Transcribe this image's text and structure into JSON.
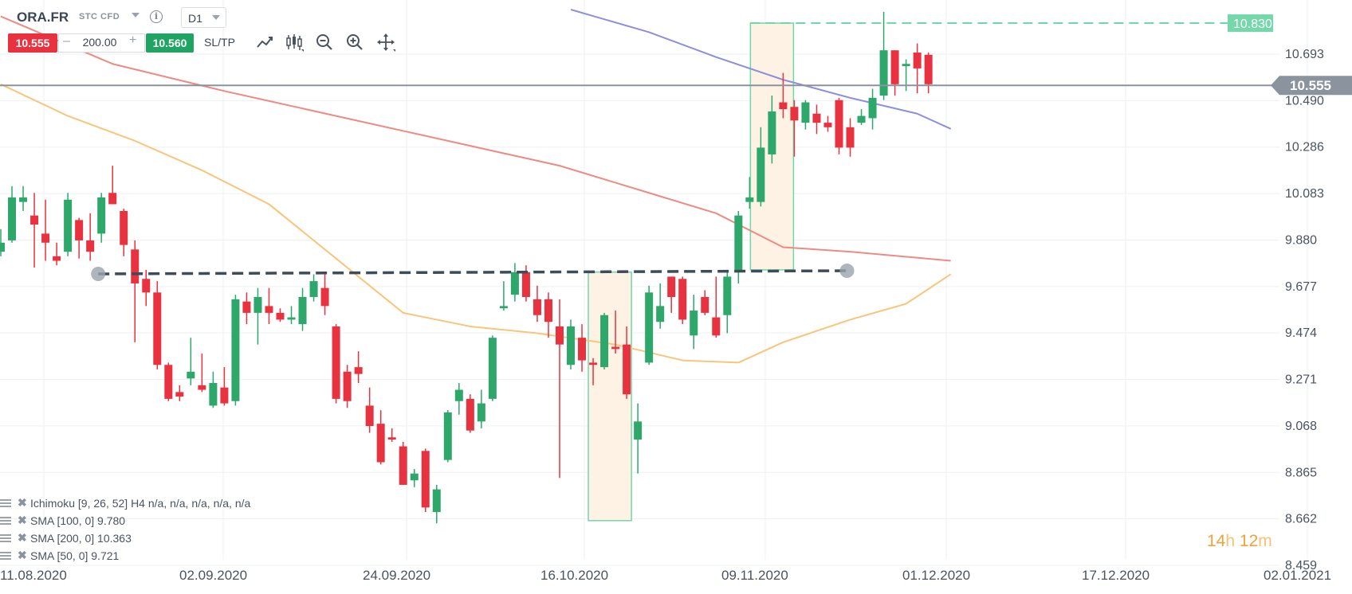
{
  "toolbar": {
    "symbol": "ORA.FR",
    "instrument_type": "STC CFD",
    "timeframe": "D1",
    "sell_price": "10.555",
    "quantity": "200.00",
    "buy_price": "10.560",
    "sl_tp_label": "SL/TP",
    "minus": "–",
    "plus": "+",
    "info": "i",
    "tools": [
      "line-chart-icon",
      "candlestick-icon",
      "zoom-out-icon",
      "zoom-in-icon",
      "move-icon"
    ]
  },
  "legend": [
    {
      "text": "Ichimoku [9, 26, 52] H4 n/a, n/a, n/a, n/a, n/a"
    },
    {
      "text": "SMA [100, 0] 9.780"
    },
    {
      "text": "SMA [200, 0] 10.363"
    },
    {
      "text": "SMA [50, 0] 9.721"
    }
  ],
  "countdown": {
    "hours": "14",
    "h": "h",
    "minutes": "12",
    "m": "m"
  },
  "colors": {
    "up": "#2ea76b",
    "down": "#e8323f",
    "sma100": "#ee8a84",
    "sma200": "#8d8fdc",
    "sma50": "#f8c57a",
    "grid": "#eef0f2",
    "axis_text": "#4a5360",
    "current_line": "#8a939e",
    "resistance": "#3d4b5a",
    "target": "#6fd8a8"
  },
  "chart_data": {
    "type": "candlestick",
    "title": "",
    "xlabel": "",
    "ylabel": "",
    "ylim": [
      8.459,
      10.9
    ],
    "y_ticks": [
      "10.693",
      "10.490",
      "10.286",
      "10.083",
      "9.880",
      "9.677",
      "9.474",
      "9.271",
      "9.068",
      "8.865",
      "8.662",
      "8.459"
    ],
    "x_ticks": [
      "11.08.2020",
      "02.09.2020",
      "24.09.2020",
      "16.10.2020",
      "09.11.2020",
      "01.12.2020",
      "17.12.2020",
      "02.01.2021"
    ],
    "current_price": {
      "value": 10.555,
      "label": "10.555"
    },
    "target_level": {
      "value": 10.83,
      "label": "10.830"
    },
    "resistance_line": {
      "start": [
        8,
        9.722
      ],
      "end": [
        75,
        9.736
      ]
    },
    "target_zone": {
      "from": 67.5,
      "to": 70.5,
      "low": 9.74,
      "high": 10.83
    },
    "earlier_zone": {
      "from": 53,
      "to": 56,
      "low": 8.632,
      "high": 9.73
    },
    "candles": [
      {
        "o": 9.82,
        "h": 9.92,
        "l": 9.8,
        "c": 9.86
      },
      {
        "o": 9.87,
        "h": 10.11,
        "l": 9.86,
        "c": 10.06
      },
      {
        "o": 10.04,
        "h": 10.11,
        "l": 10.0,
        "c": 10.06
      },
      {
        "o": 9.98,
        "h": 10.08,
        "l": 9.75,
        "c": 9.94
      },
      {
        "o": 9.9,
        "h": 10.05,
        "l": 9.78,
        "c": 9.86
      },
      {
        "o": 9.8,
        "h": 9.86,
        "l": 9.76,
        "c": 9.78
      },
      {
        "o": 9.82,
        "h": 10.08,
        "l": 9.8,
        "c": 10.05
      },
      {
        "o": 9.96,
        "h": 9.97,
        "l": 9.79,
        "c": 9.87
      },
      {
        "o": 9.87,
        "h": 9.99,
        "l": 9.78,
        "c": 9.82
      },
      {
        "o": 9.9,
        "h": 10.08,
        "l": 9.86,
        "c": 10.06
      },
      {
        "o": 10.08,
        "h": 10.2,
        "l": 10.03,
        "c": 10.03
      },
      {
        "o": 10.0,
        "h": 10.01,
        "l": 9.8,
        "c": 9.85
      },
      {
        "o": 9.83,
        "h": 9.87,
        "l": 9.42,
        "c": 9.68
      },
      {
        "o": 9.7,
        "h": 9.74,
        "l": 9.58,
        "c": 9.64
      },
      {
        "o": 9.64,
        "h": 9.69,
        "l": 9.3,
        "c": 9.32
      },
      {
        "o": 9.32,
        "h": 9.33,
        "l": 9.16,
        "c": 9.17
      },
      {
        "o": 9.2,
        "h": 9.23,
        "l": 9.16,
        "c": 9.18
      },
      {
        "o": 9.26,
        "h": 9.44,
        "l": 9.23,
        "c": 9.29
      },
      {
        "o": 9.23,
        "h": 9.37,
        "l": 9.2,
        "c": 9.21
      },
      {
        "o": 9.14,
        "h": 9.29,
        "l": 9.13,
        "c": 9.24
      },
      {
        "o": 9.22,
        "h": 9.31,
        "l": 9.14,
        "c": 9.15
      },
      {
        "o": 9.16,
        "h": 9.63,
        "l": 9.14,
        "c": 9.61
      },
      {
        "o": 9.6,
        "h": 9.64,
        "l": 9.5,
        "c": 9.55
      },
      {
        "o": 9.55,
        "h": 9.66,
        "l": 9.41,
        "c": 9.62
      },
      {
        "o": 9.58,
        "h": 9.66,
        "l": 9.5,
        "c": 9.55
      },
      {
        "o": 9.55,
        "h": 9.57,
        "l": 9.51,
        "c": 9.52
      },
      {
        "o": 9.52,
        "h": 9.58,
        "l": 9.5,
        "c": 9.53
      },
      {
        "o": 9.5,
        "h": 9.66,
        "l": 9.47,
        "c": 9.62
      },
      {
        "o": 9.62,
        "h": 9.72,
        "l": 9.6,
        "c": 9.69
      },
      {
        "o": 9.66,
        "h": 9.73,
        "l": 9.54,
        "c": 9.58
      },
      {
        "o": 9.49,
        "h": 9.5,
        "l": 9.15,
        "c": 9.17
      },
      {
        "o": 9.29,
        "h": 9.32,
        "l": 9.13,
        "c": 9.16
      },
      {
        "o": 9.31,
        "h": 9.38,
        "l": 9.24,
        "c": 9.28
      },
      {
        "o": 9.14,
        "h": 9.22,
        "l": 9.02,
        "c": 9.05
      },
      {
        "o": 9.06,
        "h": 9.12,
        "l": 8.88,
        "c": 8.89
      },
      {
        "o": 9.0,
        "h": 9.04,
        "l": 8.98,
        "c": 8.99
      },
      {
        "o": 8.96,
        "h": 8.98,
        "l": 8.79,
        "c": 8.79
      },
      {
        "o": 8.81,
        "h": 8.86,
        "l": 8.78,
        "c": 8.84
      },
      {
        "o": 8.94,
        "h": 8.95,
        "l": 8.67,
        "c": 8.69
      },
      {
        "o": 8.67,
        "h": 8.79,
        "l": 8.62,
        "c": 8.77
      },
      {
        "o": 8.9,
        "h": 9.12,
        "l": 8.89,
        "c": 9.11
      },
      {
        "o": 9.16,
        "h": 9.24,
        "l": 9.1,
        "c": 9.21
      },
      {
        "o": 9.17,
        "h": 9.19,
        "l": 9.02,
        "c": 9.03
      },
      {
        "o": 9.07,
        "h": 9.21,
        "l": 9.04,
        "c": 9.15
      },
      {
        "o": 9.17,
        "h": 9.45,
        "l": 9.16,
        "c": 9.44
      },
      {
        "o": 9.57,
        "h": 9.69,
        "l": 9.56,
        "c": 9.58
      },
      {
        "o": 9.63,
        "h": 9.77,
        "l": 9.6,
        "c": 9.73
      },
      {
        "o": 9.73,
        "h": 9.76,
        "l": 9.6,
        "c": 9.62
      },
      {
        "o": 9.61,
        "h": 9.67,
        "l": 9.51,
        "c": 9.54
      },
      {
        "o": 9.61,
        "h": 9.64,
        "l": 9.44,
        "c": 9.51
      },
      {
        "o": 9.49,
        "h": 9.61,
        "l": 8.82,
        "c": 9.41
      },
      {
        "o": 9.32,
        "h": 9.52,
        "l": 9.3,
        "c": 9.49
      },
      {
        "o": 9.44,
        "h": 9.5,
        "l": 9.29,
        "c": 9.34
      },
      {
        "o": 9.33,
        "h": 9.35,
        "l": 9.23,
        "c": 9.32
      },
      {
        "o": 9.31,
        "h": 9.55,
        "l": 9.3,
        "c": 9.54
      },
      {
        "o": 9.4,
        "h": 9.56,
        "l": 9.37,
        "c": 9.39
      },
      {
        "o": 9.41,
        "h": 9.49,
        "l": 9.17,
        "c": 9.19
      },
      {
        "o": 8.99,
        "h": 9.15,
        "l": 8.84,
        "c": 9.07
      },
      {
        "o": 9.33,
        "h": 9.67,
        "l": 9.32,
        "c": 9.64
      },
      {
        "o": 9.51,
        "h": 9.68,
        "l": 9.48,
        "c": 9.58
      },
      {
        "o": 9.71,
        "h": 9.71,
        "l": 9.55,
        "c": 9.62
      },
      {
        "o": 9.7,
        "h": 9.71,
        "l": 9.5,
        "c": 9.52
      },
      {
        "o": 9.45,
        "h": 9.63,
        "l": 9.39,
        "c": 9.56
      },
      {
        "o": 9.62,
        "h": 9.65,
        "l": 9.54,
        "c": 9.55
      },
      {
        "o": 9.53,
        "h": 9.71,
        "l": 9.44,
        "c": 9.45
      },
      {
        "o": 9.54,
        "h": 9.74,
        "l": 9.46,
        "c": 9.71
      },
      {
        "o": 9.73,
        "h": 10.0,
        "l": 9.68,
        "c": 9.98
      },
      {
        "o": 10.04,
        "h": 10.15,
        "l": 10.01,
        "c": 10.06
      },
      {
        "o": 10.04,
        "h": 10.37,
        "l": 10.02,
        "c": 10.28
      },
      {
        "o": 10.25,
        "h": 10.51,
        "l": 10.21,
        "c": 10.44
      },
      {
        "o": 10.48,
        "h": 10.61,
        "l": 10.41,
        "c": 10.45
      },
      {
        "o": 10.46,
        "h": 10.49,
        "l": 10.24,
        "c": 10.4
      },
      {
        "o": 10.39,
        "h": 10.49,
        "l": 10.36,
        "c": 10.48
      },
      {
        "o": 10.43,
        "h": 10.47,
        "l": 10.34,
        "c": 10.39
      },
      {
        "o": 10.39,
        "h": 10.42,
        "l": 10.35,
        "c": 10.37
      },
      {
        "o": 10.49,
        "h": 10.5,
        "l": 10.25,
        "c": 10.28
      },
      {
        "o": 10.37,
        "h": 10.41,
        "l": 10.24,
        "c": 10.28
      },
      {
        "o": 10.39,
        "h": 10.45,
        "l": 10.38,
        "c": 10.42
      },
      {
        "o": 10.41,
        "h": 10.54,
        "l": 10.36,
        "c": 10.5
      },
      {
        "o": 10.51,
        "h": 10.88,
        "l": 10.49,
        "c": 10.71
      },
      {
        "o": 10.71,
        "h": 10.71,
        "l": 10.51,
        "c": 10.56
      },
      {
        "o": 10.64,
        "h": 10.67,
        "l": 10.53,
        "c": 10.65
      },
      {
        "o": 10.7,
        "h": 10.74,
        "l": 10.52,
        "c": 10.63
      },
      {
        "o": 10.69,
        "h": 10.7,
        "l": 10.52,
        "c": 10.56
      }
    ],
    "sma_series": [
      {
        "name": "SMA [100, 0]",
        "color": "#ee8a84",
        "points": [
          [
            0,
            10.86
          ],
          [
            10,
            10.65
          ],
          [
            20,
            10.53
          ],
          [
            30,
            10.42
          ],
          [
            40,
            10.31
          ],
          [
            50,
            10.2
          ],
          [
            58,
            10.08
          ],
          [
            64,
            9.99
          ],
          [
            70,
            9.84
          ],
          [
            76,
            9.82
          ],
          [
            85,
            9.78
          ]
        ]
      },
      {
        "name": "SMA [200, 0]",
        "color": "#8d8fdc",
        "points": [
          [
            51,
            10.89
          ],
          [
            58,
            10.79
          ],
          [
            64,
            10.68
          ],
          [
            70,
            10.58
          ],
          [
            76,
            10.5
          ],
          [
            82,
            10.43
          ],
          [
            85,
            10.363
          ]
        ]
      },
      {
        "name": "SMA [50, 0]",
        "color": "#f8c57a",
        "points": [
          [
            0,
            10.56
          ],
          [
            6,
            10.42
          ],
          [
            12,
            10.31
          ],
          [
            18,
            10.18
          ],
          [
            24,
            10.03
          ],
          [
            30,
            9.79
          ],
          [
            36,
            9.55
          ],
          [
            42,
            9.49
          ],
          [
            48,
            9.46
          ],
          [
            55,
            9.41
          ],
          [
            61,
            9.34
          ],
          [
            66,
            9.33
          ],
          [
            70,
            9.42
          ],
          [
            76,
            9.52
          ],
          [
            81,
            9.59
          ],
          [
            85,
            9.721
          ]
        ]
      }
    ]
  }
}
